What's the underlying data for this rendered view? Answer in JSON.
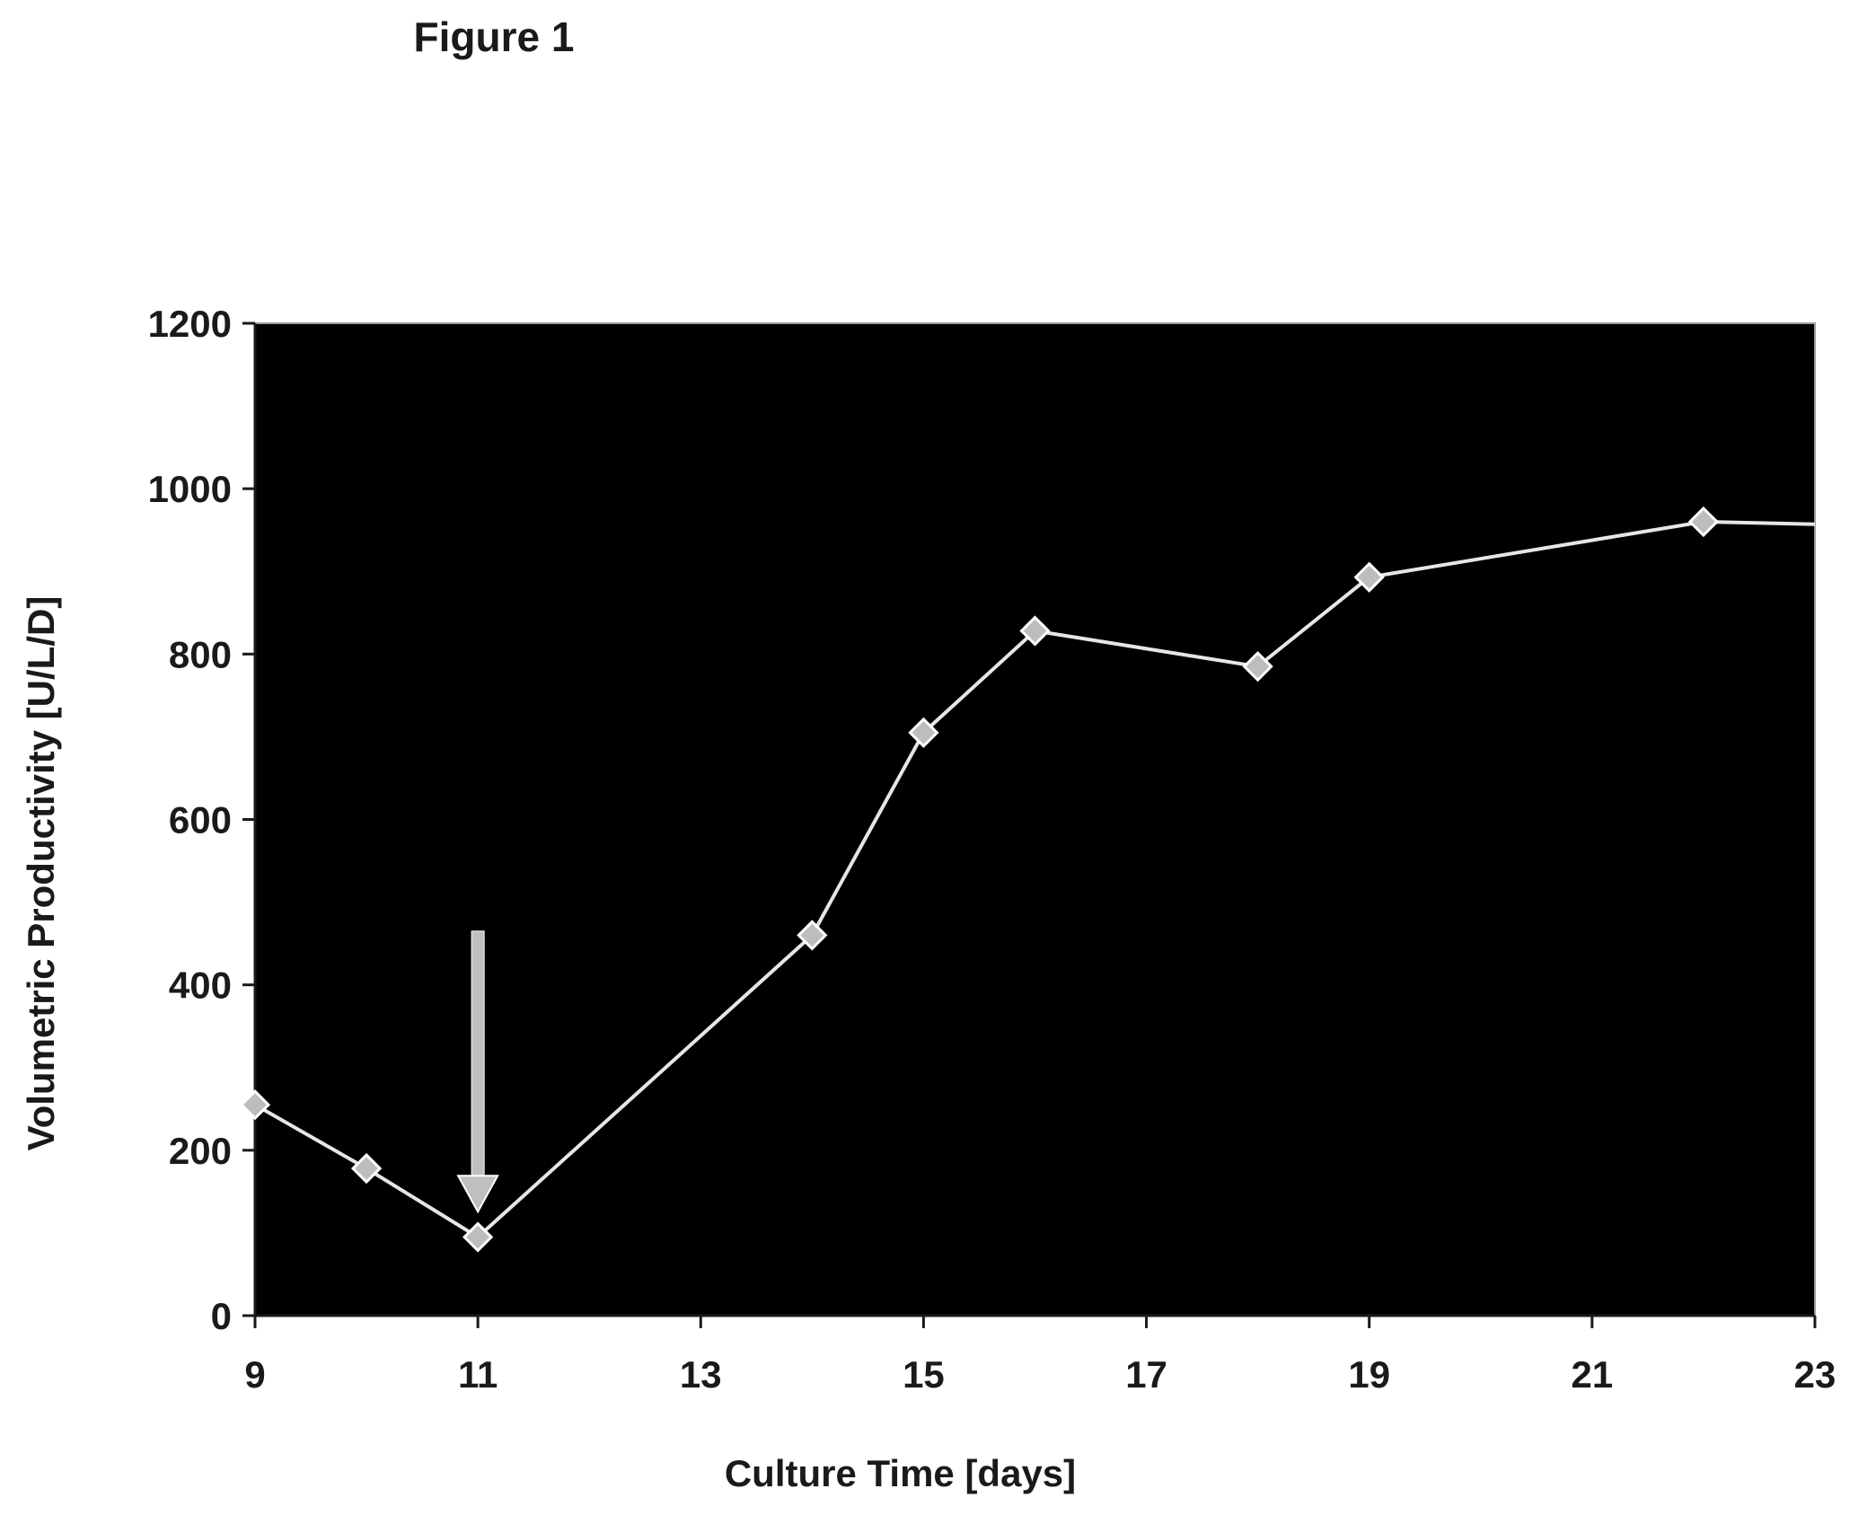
{
  "figure": {
    "title": "Figure 1"
  },
  "chart_data": {
    "type": "line",
    "title": "Figure 1",
    "xlabel": "Culture Time [days]",
    "ylabel": "Volumetric Productivity [U/L/D]",
    "xlim": [
      9,
      23
    ],
    "ylim": [
      0,
      1200
    ],
    "xticks": [
      9,
      11,
      13,
      15,
      17,
      19,
      21,
      23
    ],
    "yticks": [
      0,
      200,
      400,
      600,
      800,
      1000,
      1200
    ],
    "grid": false,
    "plot_background": "#000000",
    "line_color": "#e6e6e6",
    "marker": "diamond",
    "series": [
      {
        "x": [
          9,
          10,
          11,
          14,
          15,
          16,
          18,
          19,
          22,
          23
        ],
        "y": [
          255,
          178,
          95,
          460,
          705,
          828,
          785,
          893,
          960,
          957
        ]
      }
    ],
    "annotations": [
      {
        "type": "arrow",
        "x": 11,
        "y_from": 465,
        "y_to": 130,
        "color": "#bfbfbf"
      }
    ]
  }
}
